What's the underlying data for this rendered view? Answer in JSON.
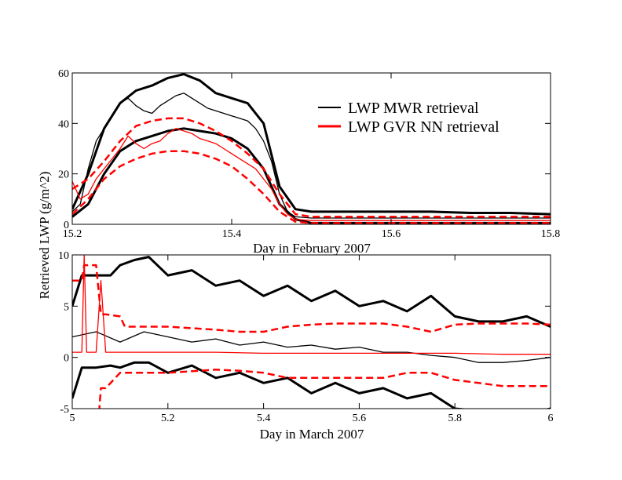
{
  "ylabel_shared": "Retrieved LWP (g/m^2)",
  "legend": [
    {
      "label": "LWP MWR retrieval",
      "color": "#000000"
    },
    {
      "label": "LWP GVR NN retrieval",
      "color": "#ff0000"
    }
  ],
  "chart_data": [
    {
      "type": "line",
      "xlabel": "Day in February 2007",
      "ylabel": "Retrieved LWP (g/m^2)",
      "xlim": [
        15.2,
        15.8
      ],
      "ylim": [
        0,
        60
      ],
      "xticks": [
        15.2,
        15.4,
        15.6,
        15.8
      ],
      "xtick_labels": [
        "15.2",
        "15.4",
        "15.6",
        "15.8"
      ],
      "yticks": [
        0,
        20,
        40,
        60
      ],
      "ytick_labels": [
        "0",
        "20",
        "40",
        "60"
      ],
      "legend_placement": "upper-right",
      "grid": false,
      "series": [
        {
          "name": "LWP MWR retrieval",
          "color": "#000000",
          "style": "solid",
          "x": [
            15.2,
            15.21,
            15.22,
            15.23,
            15.24,
            15.25,
            15.26,
            15.27,
            15.28,
            15.29,
            15.3,
            15.31,
            15.32,
            15.33,
            15.34,
            15.35,
            15.36,
            15.37,
            15.38,
            15.39,
            15.4,
            15.41,
            15.42,
            15.43,
            15.44,
            15.45,
            15.46,
            15.47,
            15.48,
            15.5,
            15.55,
            15.6,
            15.65,
            15.7,
            15.75,
            15.8
          ],
          "y": [
            5,
            8,
            22,
            33,
            38,
            43,
            48,
            50,
            47,
            45,
            44,
            47,
            49,
            51,
            52,
            50,
            48,
            46,
            45,
            44,
            43,
            42,
            41,
            38,
            33,
            25,
            12,
            5,
            3,
            2.5,
            2.5,
            2.5,
            2.5,
            2.5,
            2.5,
            2.5
          ]
        },
        {
          "name": "LWP MWR upper bound",
          "color": "#000000",
          "style": "solid-thick",
          "x": [
            15.2,
            15.22,
            15.24,
            15.26,
            15.28,
            15.3,
            15.32,
            15.34,
            15.36,
            15.38,
            15.4,
            15.42,
            15.44,
            15.46,
            15.48,
            15.5,
            15.55,
            15.6,
            15.65,
            15.7,
            15.75,
            15.8
          ],
          "y": [
            6,
            20,
            38,
            48,
            53,
            55,
            58,
            59.5,
            57,
            52,
            50,
            48,
            40,
            15,
            6,
            5,
            5,
            5,
            5,
            4.5,
            4.5,
            4
          ]
        },
        {
          "name": "LWP MWR lower bound",
          "color": "#000000",
          "style": "solid-thick",
          "x": [
            15.2,
            15.22,
            15.24,
            15.26,
            15.28,
            15.3,
            15.32,
            15.34,
            15.36,
            15.38,
            15.4,
            15.42,
            15.44,
            15.46,
            15.48,
            15.5,
            15.55,
            15.6,
            15.65,
            15.7,
            15.75,
            15.8
          ],
          "y": [
            3,
            8,
            20,
            29,
            33,
            35,
            37,
            38,
            37,
            36,
            34,
            30,
            22,
            8,
            2,
            0.5,
            0.5,
            0.5,
            0.5,
            0.5,
            0.5,
            0.5
          ]
        },
        {
          "name": "LWP GVR NN retrieval",
          "color": "#ff0000",
          "style": "solid",
          "x": [
            15.2,
            15.21,
            15.22,
            15.23,
            15.24,
            15.25,
            15.26,
            15.27,
            15.28,
            15.29,
            15.3,
            15.31,
            15.32,
            15.33,
            15.34,
            15.35,
            15.36,
            15.37,
            15.38,
            15.39,
            15.4,
            15.41,
            15.42,
            15.43,
            15.44,
            15.45,
            15.46,
            15.47,
            15.48,
            15.5,
            15.55,
            15.6,
            15.65,
            15.7,
            15.75,
            15.8
          ],
          "y": [
            17,
            10,
            12,
            18,
            22,
            26,
            30,
            35,
            32,
            30,
            32,
            33,
            36,
            38,
            37,
            36,
            34,
            33,
            32,
            30,
            28,
            26,
            24,
            22,
            18,
            14,
            8,
            4,
            2,
            1.5,
            1.5,
            1.5,
            1.5,
            1.5,
            1.5,
            1.5
          ]
        },
        {
          "name": "LWP GVR NN upper bound",
          "color": "#ff0000",
          "style": "dashed",
          "x": [
            15.2,
            15.22,
            15.24,
            15.26,
            15.28,
            15.3,
            15.32,
            15.34,
            15.36,
            15.38,
            15.4,
            15.42,
            15.44,
            15.46,
            15.48,
            15.5,
            15.55,
            15.6,
            15.65,
            15.7,
            15.75,
            15.8
          ],
          "y": [
            14,
            18,
            25,
            33,
            39,
            41,
            42,
            42,
            40,
            37,
            33,
            28,
            22,
            12,
            4,
            3,
            3,
            3,
            3,
            3,
            3,
            3
          ]
        },
        {
          "name": "LWP GVR NN lower bound",
          "color": "#ff0000",
          "style": "dashed",
          "x": [
            15.2,
            15.22,
            15.24,
            15.26,
            15.28,
            15.3,
            15.32,
            15.34,
            15.36,
            15.38,
            15.4,
            15.42,
            15.44,
            15.46,
            15.48,
            15.5,
            15.55,
            15.6,
            15.65,
            15.7,
            15.75,
            15.8
          ],
          "y": [
            4,
            10,
            18,
            23,
            26,
            28,
            29,
            29,
            28,
            26,
            23,
            18,
            12,
            5,
            1,
            0.5,
            0.5,
            0.5,
            0.5,
            0.5,
            0.5,
            0.5
          ]
        }
      ]
    },
    {
      "type": "line",
      "xlabel": "Day in March 2007",
      "ylabel": "Retrieved LWP (g/m^2)",
      "xlim": [
        5,
        6
      ],
      "ylim": [
        -5,
        10
      ],
      "xticks": [
        5,
        5.2,
        5.4,
        5.6,
        5.8,
        6
      ],
      "xtick_labels": [
        "5",
        "5.2",
        "5.4",
        "5.6",
        "5.8",
        "6"
      ],
      "yticks": [
        -5,
        0,
        5,
        10
      ],
      "ytick_labels": [
        "-5",
        "0",
        "5",
        "10"
      ],
      "grid": false,
      "series": [
        {
          "name": "LWP MWR retrieval",
          "color": "#000000",
          "style": "solid",
          "x": [
            5.0,
            5.05,
            5.1,
            5.15,
            5.2,
            5.25,
            5.3,
            5.35,
            5.4,
            5.45,
            5.5,
            5.55,
            5.6,
            5.65,
            5.7,
            5.75,
            5.8,
            5.85,
            5.9,
            5.95,
            6.0
          ],
          "y": [
            2,
            2.5,
            1.5,
            2.5,
            2,
            1.5,
            1.8,
            1.2,
            1.5,
            1,
            1.2,
            0.8,
            1,
            0.5,
            0.5,
            0.2,
            0,
            -0.5,
            -0.5,
            -0.3,
            0
          ]
        },
        {
          "name": "LWP MWR upper bound",
          "color": "#000000",
          "style": "solid-thick",
          "x": [
            5.0,
            5.02,
            5.05,
            5.08,
            5.1,
            5.13,
            5.16,
            5.2,
            5.25,
            5.3,
            5.35,
            5.4,
            5.45,
            5.5,
            5.55,
            5.6,
            5.65,
            5.7,
            5.75,
            5.8,
            5.85,
            5.9,
            5.95,
            6.0
          ],
          "y": [
            5,
            8,
            8,
            8,
            9,
            9.5,
            9.8,
            8,
            8.5,
            7,
            7.5,
            6,
            7,
            5.5,
            6.5,
            5,
            5.5,
            4.5,
            6,
            4,
            3.5,
            3.5,
            4,
            3
          ]
        },
        {
          "name": "LWP MWR lower bound",
          "color": "#000000",
          "style": "solid-thick",
          "x": [
            5.0,
            5.02,
            5.05,
            5.08,
            5.1,
            5.13,
            5.16,
            5.2,
            5.25,
            5.3,
            5.35,
            5.4,
            5.45,
            5.5,
            5.55,
            5.6,
            5.65,
            5.7,
            5.75,
            5.8,
            5.85,
            5.9,
            5.95,
            6.0
          ],
          "y": [
            -4,
            -1,
            -1,
            -0.8,
            -1,
            -0.5,
            -0.5,
            -1.5,
            -0.8,
            -2,
            -1.5,
            -2.5,
            -2,
            -3.5,
            -2.5,
            -3.5,
            -3,
            -4,
            -3.5,
            -5,
            -5.2,
            -5.5,
            -5.5,
            -5
          ]
        },
        {
          "name": "LWP GVR NN retrieval",
          "color": "#ff0000",
          "style": "solid",
          "x": [
            5.0,
            5.01,
            5.02,
            5.025,
            5.03,
            5.05,
            5.06,
            5.07,
            5.1,
            5.2,
            5.3,
            5.4,
            5.5,
            5.6,
            5.7,
            5.8,
            5.9,
            6.0
          ],
          "y": [
            0.5,
            0.5,
            0.5,
            10,
            0.5,
            0.5,
            7.5,
            0.5,
            0.5,
            0.5,
            0.5,
            0.4,
            0.4,
            0.4,
            0.4,
            0.4,
            0.3,
            0.3
          ]
        },
        {
          "name": "LWP GVR NN upper bound",
          "color": "#ff0000",
          "style": "dashed",
          "x": [
            5.0,
            5.02,
            5.025,
            5.05,
            5.06,
            5.07,
            5.1,
            5.11,
            5.15,
            5.2,
            5.3,
            5.35,
            5.4,
            5.45,
            5.5,
            5.55,
            5.6,
            5.65,
            5.7,
            5.75,
            5.8,
            5.85,
            5.9,
            5.95,
            6.0
          ],
          "y": [
            7.5,
            7.5,
            9,
            9,
            4.2,
            4.2,
            4,
            3,
            3,
            3,
            2.7,
            2.5,
            2.5,
            3,
            3.2,
            3.3,
            3.3,
            3.3,
            3,
            2.5,
            3.2,
            3.3,
            3.3,
            3.3,
            3.2
          ]
        },
        {
          "name": "LWP GVR NN lower bound",
          "color": "#ff0000",
          "style": "dashed",
          "x": [
            5.0,
            5.055,
            5.06,
            5.07,
            5.09,
            5.1,
            5.15,
            5.2,
            5.3,
            5.35,
            5.4,
            5.45,
            5.5,
            5.55,
            5.6,
            5.65,
            5.7,
            5.75,
            5.8,
            5.85,
            5.9,
            5.95,
            6.0
          ],
          "y": [
            -6,
            -6,
            -3,
            -3,
            -2,
            -1.5,
            -1.5,
            -1.5,
            -1.2,
            -1.3,
            -1.5,
            -2,
            -2,
            -2,
            -2,
            -2,
            -1.5,
            -1.5,
            -2.2,
            -2.5,
            -2.8,
            -2.8,
            -2.8
          ]
        }
      ]
    }
  ]
}
